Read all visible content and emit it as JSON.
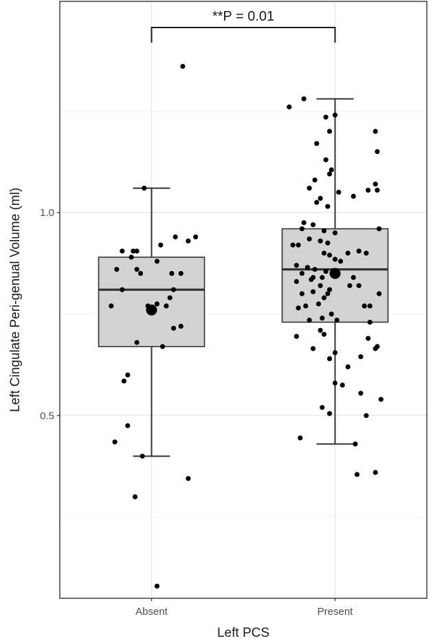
{
  "chart_data": {
    "type": "box",
    "xlabel": "Left PCS",
    "ylabel": "Left Cingulate Peri-genual Volume (ml)",
    "categories": [
      "Absent",
      "Present"
    ],
    "ylim": [
      0.05,
      1.52
    ],
    "yticks": [
      {
        "value": 0.5,
        "label": "0.5"
      },
      {
        "value": 1.0,
        "label": "1.0"
      }
    ],
    "grid": true,
    "annotation": "**P = 0.01",
    "colors": {
      "box_fill": "#d3d3d3",
      "box_stroke": "#333333",
      "point": "#000000",
      "grid_major": "#e6e6e6",
      "grid_minor": "#f2f2f2",
      "panel_border": "#333333"
    },
    "boxes": [
      {
        "category": "Absent",
        "lower_whisker": 0.4,
        "q1": 0.67,
        "median": 0.81,
        "q3": 0.89,
        "upper_whisker": 1.06,
        "mean": 0.76
      },
      {
        "category": "Present",
        "lower_whisker": 0.43,
        "q1": 0.73,
        "median": 0.86,
        "q3": 0.96,
        "upper_whisker": 1.28,
        "mean": 0.85
      }
    ],
    "points": [
      {
        "category": "Absent",
        "offset": 0.17,
        "y": 1.36
      },
      {
        "category": "Absent",
        "offset": -0.04,
        "y": 1.06
      },
      {
        "category": "Absent",
        "offset": 0.13,
        "y": 0.94
      },
      {
        "category": "Absent",
        "offset": 0.2,
        "y": 0.93
      },
      {
        "category": "Absent",
        "offset": 0.24,
        "y": 0.94
      },
      {
        "category": "Absent",
        "offset": 0.05,
        "y": 0.92
      },
      {
        "category": "Absent",
        "offset": -0.16,
        "y": 0.905
      },
      {
        "category": "Absent",
        "offset": -0.1,
        "y": 0.905
      },
      {
        "category": "Absent",
        "offset": -0.08,
        "y": 0.905
      },
      {
        "category": "Absent",
        "offset": -0.11,
        "y": 0.89
      },
      {
        "category": "Absent",
        "offset": 0.03,
        "y": 0.88
      },
      {
        "category": "Absent",
        "offset": -0.19,
        "y": 0.86
      },
      {
        "category": "Absent",
        "offset": -0.08,
        "y": 0.86
      },
      {
        "category": "Absent",
        "offset": -0.06,
        "y": 0.85
      },
      {
        "category": "Absent",
        "offset": 0.11,
        "y": 0.85
      },
      {
        "category": "Absent",
        "offset": 0.16,
        "y": 0.85
      },
      {
        "category": "Absent",
        "offset": -0.16,
        "y": 0.81
      },
      {
        "category": "Absent",
        "offset": 0.12,
        "y": 0.81
      },
      {
        "category": "Absent",
        "offset": 0.1,
        "y": 0.79
      },
      {
        "category": "Absent",
        "offset": -0.02,
        "y": 0.77
      },
      {
        "category": "Absent",
        "offset": 0.03,
        "y": 0.775
      },
      {
        "category": "Absent",
        "offset": 0.08,
        "y": 0.77
      },
      {
        "category": "Absent",
        "offset": -0.22,
        "y": 0.77
      },
      {
        "category": "Absent",
        "offset": 0.16,
        "y": 0.72
      },
      {
        "category": "Absent",
        "offset": 0.12,
        "y": 0.715
      },
      {
        "category": "Absent",
        "offset": -0.08,
        "y": 0.68
      },
      {
        "category": "Absent",
        "offset": 0.06,
        "y": 0.67
      },
      {
        "category": "Absent",
        "offset": -0.13,
        "y": 0.6
      },
      {
        "category": "Absent",
        "offset": -0.15,
        "y": 0.585
      },
      {
        "category": "Absent",
        "offset": -0.13,
        "y": 0.475
      },
      {
        "category": "Absent",
        "offset": -0.2,
        "y": 0.435
      },
      {
        "category": "Absent",
        "offset": -0.05,
        "y": 0.4
      },
      {
        "category": "Absent",
        "offset": 0.2,
        "y": 0.345
      },
      {
        "category": "Absent",
        "offset": -0.09,
        "y": 0.3
      },
      {
        "category": "Absent",
        "offset": 0.03,
        "y": 0.08
      },
      {
        "category": "Present",
        "offset": -0.17,
        "y": 1.28
      },
      {
        "category": "Present",
        "offset": -0.25,
        "y": 1.26
      },
      {
        "category": "Present",
        "offset": 0.0,
        "y": 1.24
      },
      {
        "category": "Present",
        "offset": -0.05,
        "y": 1.235
      },
      {
        "category": "Present",
        "offset": -0.03,
        "y": 1.2
      },
      {
        "category": "Present",
        "offset": 0.22,
        "y": 1.2
      },
      {
        "category": "Present",
        "offset": -0.1,
        "y": 1.17
      },
      {
        "category": "Present",
        "offset": 0.23,
        "y": 1.15
      },
      {
        "category": "Present",
        "offset": -0.05,
        "y": 1.13
      },
      {
        "category": "Present",
        "offset": -0.02,
        "y": 1.105
      },
      {
        "category": "Present",
        "offset": -0.03,
        "y": 1.095
      },
      {
        "category": "Present",
        "offset": -0.11,
        "y": 1.08
      },
      {
        "category": "Present",
        "offset": 0.22,
        "y": 1.07
      },
      {
        "category": "Present",
        "offset": -0.14,
        "y": 1.06
      },
      {
        "category": "Present",
        "offset": 0.18,
        "y": 1.055
      },
      {
        "category": "Present",
        "offset": 0.23,
        "y": 1.055
      },
      {
        "category": "Present",
        "offset": 0.02,
        "y": 1.05
      },
      {
        "category": "Present",
        "offset": -0.08,
        "y": 1.035
      },
      {
        "category": "Present",
        "offset": 0.1,
        "y": 1.04
      },
      {
        "category": "Present",
        "offset": -0.1,
        "y": 1.025
      },
      {
        "category": "Present",
        "offset": -0.04,
        "y": 1.015
      },
      {
        "category": "Present",
        "offset": -0.17,
        "y": 0.975
      },
      {
        "category": "Present",
        "offset": -0.12,
        "y": 0.97
      },
      {
        "category": "Present",
        "offset": -0.18,
        "y": 0.96
      },
      {
        "category": "Present",
        "offset": -0.06,
        "y": 0.955
      },
      {
        "category": "Present",
        "offset": 0.0,
        "y": 0.95
      },
      {
        "category": "Present",
        "offset": 0.24,
        "y": 0.96
      },
      {
        "category": "Present",
        "offset": -0.14,
        "y": 0.935
      },
      {
        "category": "Present",
        "offset": -0.08,
        "y": 0.93
      },
      {
        "category": "Present",
        "offset": -0.04,
        "y": 0.925
      },
      {
        "category": "Present",
        "offset": -0.23,
        "y": 0.92
      },
      {
        "category": "Present",
        "offset": -0.2,
        "y": 0.92
      },
      {
        "category": "Present",
        "offset": 0.13,
        "y": 0.905
      },
      {
        "category": "Present",
        "offset": 0.17,
        "y": 0.9
      },
      {
        "category": "Present",
        "offset": -0.06,
        "y": 0.9
      },
      {
        "category": "Present",
        "offset": 0.07,
        "y": 0.9
      },
      {
        "category": "Present",
        "offset": -0.03,
        "y": 0.895
      },
      {
        "category": "Present",
        "offset": 0.0,
        "y": 0.885
      },
      {
        "category": "Present",
        "offset": 0.03,
        "y": 0.88
      },
      {
        "category": "Present",
        "offset": -0.21,
        "y": 0.87
      },
      {
        "category": "Present",
        "offset": -0.15,
        "y": 0.865
      },
      {
        "category": "Present",
        "offset": -0.11,
        "y": 0.86
      },
      {
        "category": "Present",
        "offset": -0.05,
        "y": 0.855
      },
      {
        "category": "Present",
        "offset": -0.18,
        "y": 0.85
      },
      {
        "category": "Present",
        "offset": -0.12,
        "y": 0.84
      },
      {
        "category": "Present",
        "offset": -0.07,
        "y": 0.84
      },
      {
        "category": "Present",
        "offset": 0.1,
        "y": 0.84
      },
      {
        "category": "Present",
        "offset": -0.13,
        "y": 0.835
      },
      {
        "category": "Present",
        "offset": -0.21,
        "y": 0.83
      },
      {
        "category": "Present",
        "offset": -0.08,
        "y": 0.82
      },
      {
        "category": "Present",
        "offset": 0.08,
        "y": 0.82
      },
      {
        "category": "Present",
        "offset": 0.13,
        "y": 0.82
      },
      {
        "category": "Present",
        "offset": -0.03,
        "y": 0.81
      },
      {
        "category": "Present",
        "offset": -0.18,
        "y": 0.8
      },
      {
        "category": "Present",
        "offset": -0.12,
        "y": 0.805
      },
      {
        "category": "Present",
        "offset": -0.04,
        "y": 0.8
      },
      {
        "category": "Present",
        "offset": 0.24,
        "y": 0.8
      },
      {
        "category": "Present",
        "offset": -0.06,
        "y": 0.79
      },
      {
        "category": "Present",
        "offset": -0.09,
        "y": 0.775
      },
      {
        "category": "Present",
        "offset": -0.16,
        "y": 0.77
      },
      {
        "category": "Present",
        "offset": -0.2,
        "y": 0.765
      },
      {
        "category": "Present",
        "offset": 0.16,
        "y": 0.77
      },
      {
        "category": "Present",
        "offset": 0.19,
        "y": 0.77
      },
      {
        "category": "Present",
        "offset": -0.02,
        "y": 0.75
      },
      {
        "category": "Present",
        "offset": -0.07,
        "y": 0.74
      },
      {
        "category": "Present",
        "offset": -0.14,
        "y": 0.735
      },
      {
        "category": "Present",
        "offset": 0.01,
        "y": 0.735
      },
      {
        "category": "Present",
        "offset": 0.19,
        "y": 0.73
      },
      {
        "category": "Present",
        "offset": -0.08,
        "y": 0.71
      },
      {
        "category": "Present",
        "offset": -0.06,
        "y": 0.7
      },
      {
        "category": "Present",
        "offset": -0.21,
        "y": 0.695
      },
      {
        "category": "Present",
        "offset": 0.18,
        "y": 0.69
      },
      {
        "category": "Present",
        "offset": 0.23,
        "y": 0.67
      },
      {
        "category": "Present",
        "offset": -0.12,
        "y": 0.665
      },
      {
        "category": "Present",
        "offset": 0.22,
        "y": 0.665
      },
      {
        "category": "Present",
        "offset": 0.0,
        "y": 0.655
      },
      {
        "category": "Present",
        "offset": 0.14,
        "y": 0.645
      },
      {
        "category": "Present",
        "offset": -0.03,
        "y": 0.64
      },
      {
        "category": "Present",
        "offset": 0.07,
        "y": 0.62
      },
      {
        "category": "Present",
        "offset": 0.0,
        "y": 0.58
      },
      {
        "category": "Present",
        "offset": 0.04,
        "y": 0.575
      },
      {
        "category": "Present",
        "offset": 0.14,
        "y": 0.555
      },
      {
        "category": "Present",
        "offset": 0.25,
        "y": 0.54
      },
      {
        "category": "Present",
        "offset": -0.07,
        "y": 0.52
      },
      {
        "category": "Present",
        "offset": -0.03,
        "y": 0.505
      },
      {
        "category": "Present",
        "offset": 0.17,
        "y": 0.5
      },
      {
        "category": "Present",
        "offset": -0.19,
        "y": 0.445
      },
      {
        "category": "Present",
        "offset": 0.11,
        "y": 0.43
      },
      {
        "category": "Present",
        "offset": 0.12,
        "y": 0.355
      },
      {
        "category": "Present",
        "offset": 0.22,
        "y": 0.36
      }
    ]
  }
}
